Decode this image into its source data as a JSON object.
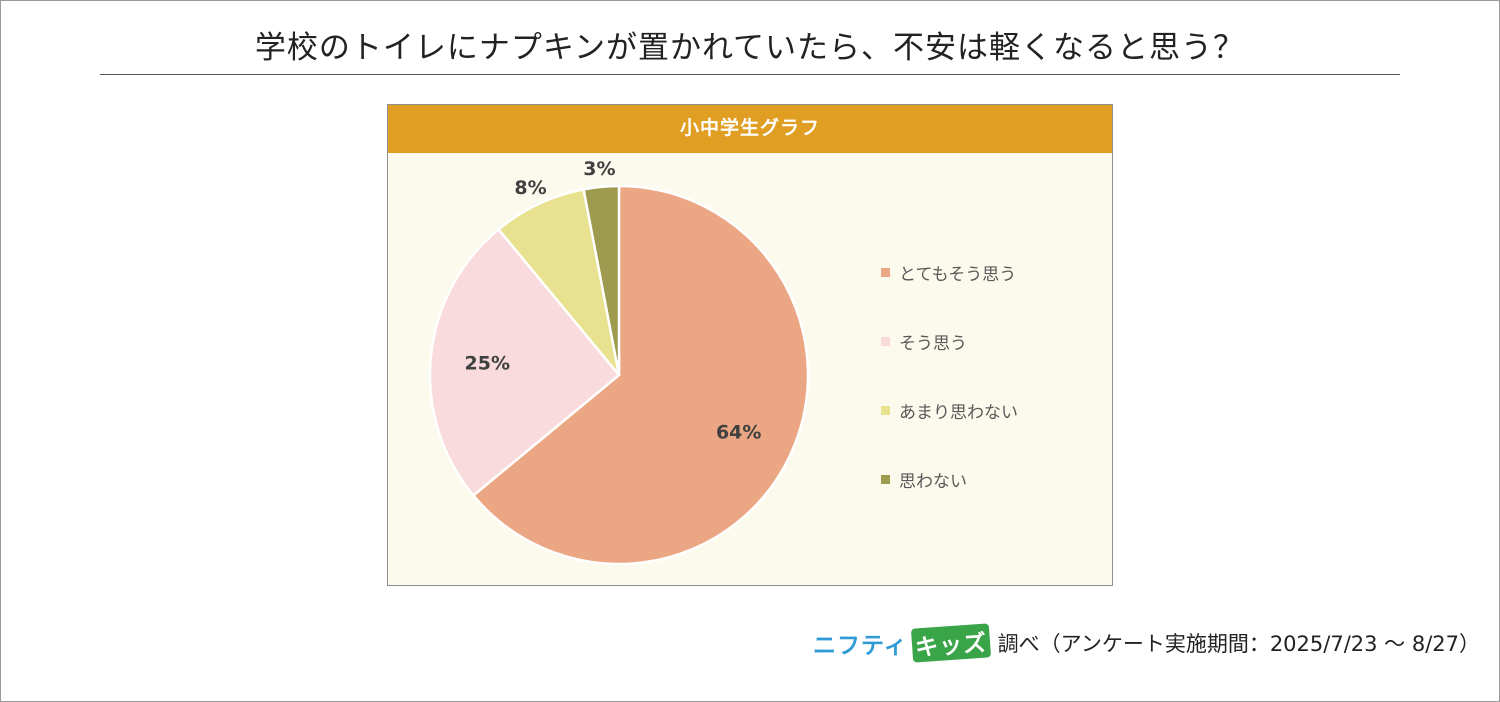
{
  "title": "学校のトイレにナプキンが置かれていたら、不安は軽くなると思う？",
  "chart_data": {
    "type": "pie",
    "title": "小中学生グラフ",
    "categories": [
      "とてもそう思う",
      "そう思う",
      "あまり思わない",
      "思わない"
    ],
    "values": [
      64,
      25,
      8,
      3
    ],
    "value_labels": [
      "64%",
      "25%",
      "8%",
      "3%"
    ],
    "colors": [
      "#eba784",
      "#f9dadd",
      "#e8e290",
      "#9e9a4e"
    ],
    "legend_position": "right"
  },
  "source": {
    "logo_part1": "ニフティ",
    "logo_part2": "キッズ",
    "text": "調べ（アンケート実施期間：2025/7/23 ～ 8/27）"
  }
}
